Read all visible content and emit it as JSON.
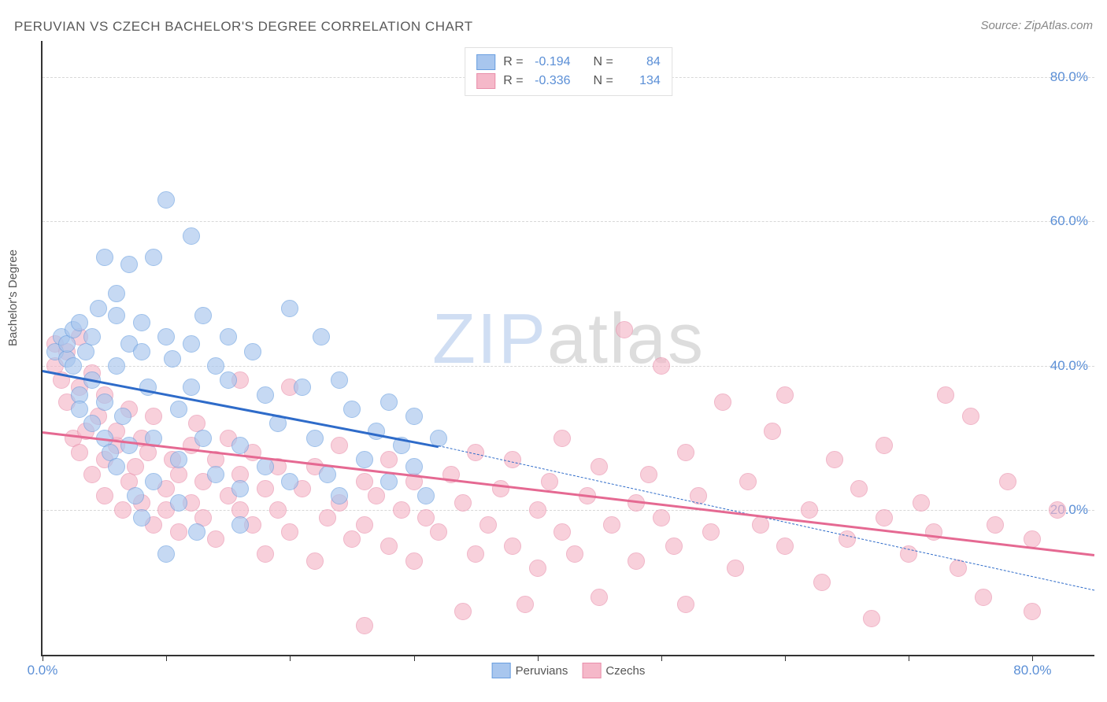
{
  "title": "PERUVIAN VS CZECH BACHELOR'S DEGREE CORRELATION CHART",
  "source": "Source: ZipAtlas.com",
  "ylabel": "Bachelor's Degree",
  "watermark": {
    "part1": "ZIP",
    "part2": "atlas"
  },
  "chart": {
    "type": "scatter",
    "xlim": [
      0,
      85
    ],
    "ylim": [
      0,
      85
    ],
    "xtick_positions": [
      0,
      10,
      20,
      30,
      40,
      50,
      60,
      70,
      80
    ],
    "xtick_labels_shown": {
      "0": "0.0%",
      "80": "80.0%"
    },
    "ytick_positions": [
      20,
      40,
      60,
      80
    ],
    "ytick_labels": [
      "20.0%",
      "40.0%",
      "60.0%",
      "80.0%"
    ],
    "grid_color": "#d8d8d8",
    "background_color": "#ffffff",
    "axis_color": "#333333",
    "tick_label_color": "#5b8fd6",
    "marker_radius": 10,
    "marker_stroke_width": 1.5,
    "marker_fill_opacity": 0.35
  },
  "series": [
    {
      "name": "Peruvians",
      "fill": "#a8c6ee",
      "stroke": "#6a9fe0",
      "R": "-0.194",
      "N": "84",
      "trend": {
        "x1": 0,
        "y1": 39.5,
        "x2": 32,
        "y2": 29,
        "color": "#2e6bc9",
        "solid_until_x": 32,
        "dash_to_x": 85,
        "dash_to_y": 9
      },
      "points": [
        [
          1,
          42
        ],
        [
          1.5,
          44
        ],
        [
          2,
          41
        ],
        [
          2,
          43
        ],
        [
          2.5,
          40
        ],
        [
          2.5,
          45
        ],
        [
          3,
          36
        ],
        [
          3,
          46
        ],
        [
          3,
          34
        ],
        [
          3.5,
          42
        ],
        [
          4,
          38
        ],
        [
          4,
          32
        ],
        [
          4,
          44
        ],
        [
          4.5,
          48
        ],
        [
          5,
          35
        ],
        [
          5,
          30
        ],
        [
          5,
          55
        ],
        [
          5.5,
          28
        ],
        [
          6,
          47
        ],
        [
          6,
          40
        ],
        [
          6,
          26
        ],
        [
          6.5,
          33
        ],
        [
          7,
          54
        ],
        [
          7,
          43
        ],
        [
          7,
          29
        ],
        [
          7.5,
          22
        ],
        [
          8,
          46
        ],
        [
          8,
          42
        ],
        [
          8,
          19
        ],
        [
          8.5,
          37
        ],
        [
          9,
          55
        ],
        [
          9,
          24
        ],
        [
          9,
          30
        ],
        [
          10,
          44
        ],
        [
          10,
          63
        ],
        [
          10.5,
          41
        ],
        [
          11,
          34
        ],
        [
          11,
          27
        ],
        [
          11,
          21
        ],
        [
          12,
          43
        ],
        [
          12,
          37
        ],
        [
          12.5,
          17
        ],
        [
          13,
          30
        ],
        [
          13,
          47
        ],
        [
          14,
          40
        ],
        [
          14,
          25
        ],
        [
          15,
          38
        ],
        [
          15,
          44
        ],
        [
          16,
          29
        ],
        [
          16,
          23
        ],
        [
          17,
          42
        ],
        [
          18,
          26
        ],
        [
          18,
          36
        ],
        [
          19,
          32
        ],
        [
          20,
          48
        ],
        [
          20,
          24
        ],
        [
          21,
          37
        ],
        [
          22,
          30
        ],
        [
          22.5,
          44
        ],
        [
          23,
          25
        ],
        [
          24,
          38
        ],
        [
          24,
          22
        ],
        [
          25,
          34
        ],
        [
          26,
          27
        ],
        [
          27,
          31
        ],
        [
          28,
          35
        ],
        [
          28,
          24
        ],
        [
          29,
          29
        ],
        [
          30,
          26
        ],
        [
          30,
          33
        ],
        [
          31,
          22
        ],
        [
          32,
          30
        ],
        [
          10,
          14
        ],
        [
          12,
          58
        ],
        [
          6,
          50
        ],
        [
          16,
          18
        ]
      ]
    },
    {
      "name": "Czechs",
      "fill": "#f5b8c9",
      "stroke": "#e98fab",
      "R": "-0.336",
      "N": "134",
      "trend": {
        "x1": 0,
        "y1": 31,
        "x2": 85,
        "y2": 14,
        "color": "#e56992",
        "solid_until_x": 85
      },
      "points": [
        [
          1,
          40
        ],
        [
          1,
          43
        ],
        [
          1.5,
          38
        ],
        [
          2,
          35
        ],
        [
          2,
          42
        ],
        [
          2.5,
          30
        ],
        [
          3,
          37
        ],
        [
          3,
          28
        ],
        [
          3,
          44
        ],
        [
          3.5,
          31
        ],
        [
          4,
          25
        ],
        [
          4,
          39
        ],
        [
          4.5,
          33
        ],
        [
          5,
          27
        ],
        [
          5,
          22
        ],
        [
          5,
          36
        ],
        [
          6,
          29
        ],
        [
          6,
          31
        ],
        [
          6.5,
          20
        ],
        [
          7,
          24
        ],
        [
          7,
          34
        ],
        [
          7.5,
          26
        ],
        [
          8,
          21
        ],
        [
          8,
          30
        ],
        [
          8.5,
          28
        ],
        [
          9,
          18
        ],
        [
          9,
          33
        ],
        [
          10,
          23
        ],
        [
          10,
          20
        ],
        [
          10.5,
          27
        ],
        [
          11,
          25
        ],
        [
          11,
          17
        ],
        [
          12,
          29
        ],
        [
          12,
          21
        ],
        [
          12.5,
          32
        ],
        [
          13,
          19
        ],
        [
          13,
          24
        ],
        [
          14,
          27
        ],
        [
          14,
          16
        ],
        [
          15,
          22
        ],
        [
          15,
          30
        ],
        [
          16,
          20
        ],
        [
          16,
          25
        ],
        [
          17,
          18
        ],
        [
          17,
          28
        ],
        [
          18,
          14
        ],
        [
          18,
          23
        ],
        [
          19,
          26
        ],
        [
          19,
          20
        ],
        [
          20,
          17
        ],
        [
          20,
          37
        ],
        [
          21,
          23
        ],
        [
          22,
          26
        ],
        [
          22,
          13
        ],
        [
          23,
          19
        ],
        [
          24,
          29
        ],
        [
          24,
          21
        ],
        [
          25,
          16
        ],
        [
          26,
          24
        ],
        [
          26,
          18
        ],
        [
          27,
          22
        ],
        [
          28,
          15
        ],
        [
          28,
          27
        ],
        [
          29,
          20
        ],
        [
          30,
          24
        ],
        [
          30,
          13
        ],
        [
          31,
          19
        ],
        [
          32,
          17
        ],
        [
          33,
          25
        ],
        [
          34,
          21
        ],
        [
          35,
          14
        ],
        [
          35,
          28
        ],
        [
          36,
          18
        ],
        [
          37,
          23
        ],
        [
          38,
          15
        ],
        [
          38,
          27
        ],
        [
          39,
          7
        ],
        [
          40,
          20
        ],
        [
          40,
          12
        ],
        [
          41,
          24
        ],
        [
          42,
          17
        ],
        [
          42,
          30
        ],
        [
          43,
          14
        ],
        [
          44,
          22
        ],
        [
          45,
          8
        ],
        [
          45,
          26
        ],
        [
          46,
          18
        ],
        [
          47,
          45
        ],
        [
          48,
          21
        ],
        [
          48,
          13
        ],
        [
          49,
          25
        ],
        [
          50,
          19
        ],
        [
          50,
          40
        ],
        [
          51,
          15
        ],
        [
          52,
          28
        ],
        [
          52,
          7
        ],
        [
          53,
          22
        ],
        [
          54,
          17
        ],
        [
          55,
          35
        ],
        [
          56,
          12
        ],
        [
          57,
          24
        ],
        [
          58,
          18
        ],
        [
          59,
          31
        ],
        [
          60,
          15
        ],
        [
          60,
          36
        ],
        [
          62,
          20
        ],
        [
          63,
          10
        ],
        [
          64,
          27
        ],
        [
          65,
          16
        ],
        [
          66,
          23
        ],
        [
          67,
          5
        ],
        [
          68,
          19
        ],
        [
          68,
          29
        ],
        [
          70,
          14
        ],
        [
          71,
          21
        ],
        [
          72,
          17
        ],
        [
          73,
          36
        ],
        [
          74,
          12
        ],
        [
          75,
          33
        ],
        [
          76,
          8
        ],
        [
          77,
          18
        ],
        [
          78,
          24
        ],
        [
          80,
          16
        ],
        [
          80,
          6
        ],
        [
          82,
          20
        ],
        [
          26,
          4
        ],
        [
          34,
          6
        ],
        [
          16,
          38
        ]
      ]
    }
  ],
  "legend_top": {
    "label_R": "R =",
    "label_N": "N ="
  },
  "legend_bottom": [
    {
      "label": "Peruvians"
    },
    {
      "label": "Czechs"
    }
  ]
}
